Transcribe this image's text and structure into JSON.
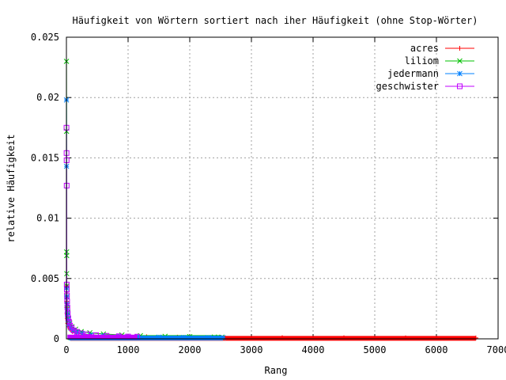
{
  "chart_data": {
    "type": "line",
    "title": "Häufigkeit von Wörtern sortiert nach iher Häufigkeit (ohne Stop-Wörter)",
    "xlabel": "Rang",
    "ylabel": "relative Häufigkeit",
    "xlim": [
      0,
      7000
    ],
    "ylim": [
      0,
      0.025
    ],
    "xticks": [
      0,
      1000,
      2000,
      3000,
      4000,
      5000,
      6000,
      7000
    ],
    "xtick_labels": [
      "0",
      "1000",
      "2000",
      "3000",
      "4000",
      "5000",
      "6000",
      "7000"
    ],
    "yticks": [
      0,
      0.005,
      0.01,
      0.015,
      0.02,
      0.025
    ],
    "ytick_labels": [
      "0",
      "0.005",
      "0.01",
      "0.015",
      "0.02",
      "0.025"
    ],
    "grid": true,
    "legend_position": "top-right",
    "series": [
      {
        "name": "acres",
        "color": "#ff0000",
        "marker": "plus",
        "points": [
          [
            1,
            0.0044
          ],
          [
            2,
            0.0038
          ],
          [
            3,
            0.0031
          ],
          [
            5,
            0.0026
          ],
          [
            8,
            0.0021
          ],
          [
            12,
            0.0017
          ],
          [
            20,
            0.0013
          ],
          [
            35,
            0.001
          ],
          [
            60,
            0.0008
          ],
          [
            100,
            0.0006
          ],
          [
            160,
            0.0005
          ],
          [
            260,
            0.0004
          ],
          [
            400,
            0.00032
          ],
          [
            600,
            0.00026
          ],
          [
            900,
            0.00021
          ],
          [
            1300,
            0.00017
          ],
          [
            1800,
            0.00014
          ],
          [
            2500,
            0.00012
          ],
          [
            3500,
            0.0001
          ],
          [
            4500,
            9e-05
          ],
          [
            5500,
            8e-05
          ],
          [
            6640,
            7e-05
          ]
        ]
      },
      {
        "name": "liliom",
        "color": "#00c000",
        "marker": "cross",
        "points": [
          [
            1,
            0.023
          ],
          [
            2,
            0.0172
          ],
          [
            3,
            0.0072
          ],
          [
            4,
            0.0069
          ],
          [
            5,
            0.0054
          ],
          [
            7,
            0.0044
          ],
          [
            10,
            0.0035
          ],
          [
            15,
            0.0028
          ],
          [
            22,
            0.0022
          ],
          [
            35,
            0.0017
          ],
          [
            55,
            0.0013
          ],
          [
            90,
            0.001
          ],
          [
            150,
            0.0008
          ],
          [
            240,
            0.0006
          ],
          [
            380,
            0.0005
          ],
          [
            600,
            0.0004
          ],
          [
            900,
            0.00032
          ],
          [
            1200,
            0.00026
          ],
          [
            1600,
            0.00021
          ],
          [
            2000,
            0.00018
          ],
          [
            2400,
            0.00015
          ],
          [
            2520,
            0.00014
          ]
        ]
      },
      {
        "name": "jedermann",
        "color": "#0080ff",
        "marker": "star",
        "points": [
          [
            1,
            0.0198
          ],
          [
            2,
            0.0143
          ],
          [
            3,
            0.0042
          ],
          [
            5,
            0.0035
          ],
          [
            8,
            0.0029
          ],
          [
            12,
            0.0024
          ],
          [
            18,
            0.002
          ],
          [
            28,
            0.0016
          ],
          [
            45,
            0.0012
          ],
          [
            70,
            0.0009
          ],
          [
            110,
            0.0007
          ],
          [
            170,
            0.00055
          ],
          [
            260,
            0.00043
          ],
          [
            400,
            0.00033
          ],
          [
            600,
            0.00026
          ],
          [
            850,
            0.00021
          ],
          [
            1150,
            0.00017
          ],
          [
            1500,
            0.00014
          ],
          [
            1900,
            0.00012
          ],
          [
            2300,
            0.00011
          ],
          [
            2540,
            0.0001
          ]
        ]
      },
      {
        "name": "geschwister",
        "color": "#c000ff",
        "marker": "square",
        "points": [
          [
            1,
            0.0175
          ],
          [
            2,
            0.0154
          ],
          [
            3,
            0.0148
          ],
          [
            4,
            0.0127
          ],
          [
            5,
            0.0045
          ],
          [
            7,
            0.0041
          ],
          [
            9,
            0.0036
          ],
          [
            12,
            0.0031
          ],
          [
            16,
            0.0026
          ],
          [
            22,
            0.0021
          ],
          [
            30,
            0.0017
          ],
          [
            42,
            0.0014
          ],
          [
            60,
            0.0011
          ],
          [
            85,
            0.0009
          ],
          [
            120,
            0.0007
          ],
          [
            170,
            0.00058
          ],
          [
            240,
            0.00046
          ],
          [
            340,
            0.00037
          ],
          [
            480,
            0.0003
          ],
          [
            650,
            0.00025
          ],
          [
            850,
            0.00021
          ],
          [
            1000,
            0.00019
          ],
          [
            1150,
            0.00018
          ]
        ]
      }
    ]
  }
}
